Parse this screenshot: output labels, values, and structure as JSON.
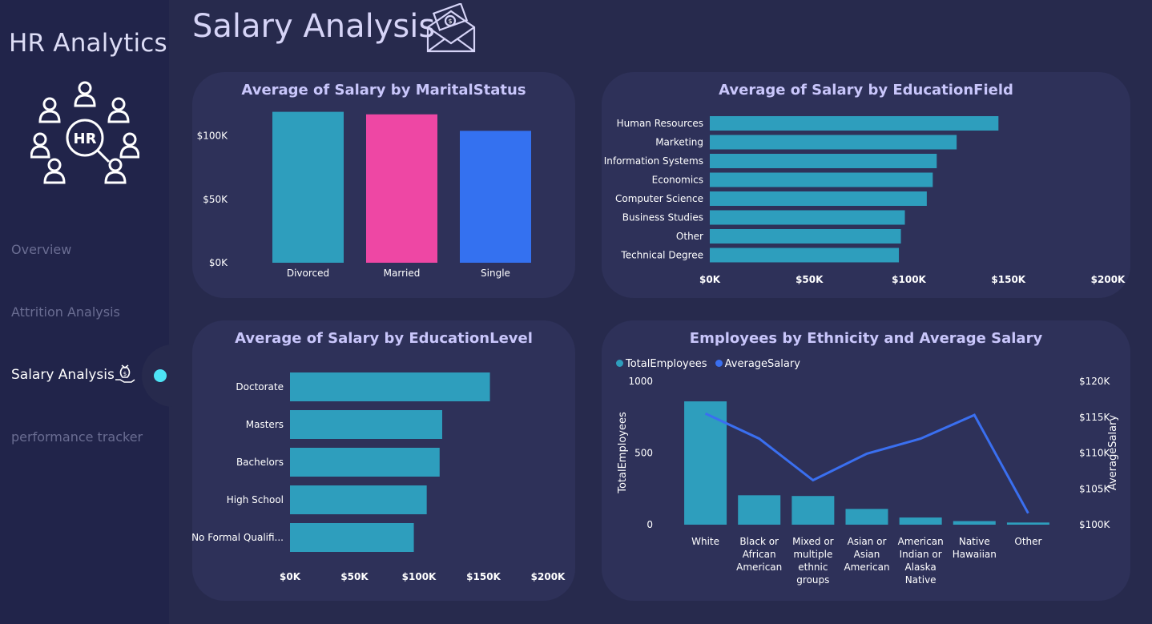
{
  "sidebar": {
    "app_title": "HR Analytics",
    "nav": [
      {
        "label": "Overview"
      },
      {
        "label": "Attrition Analysis"
      },
      {
        "label": "Salary Analysis"
      },
      {
        "label": "performance tracker"
      }
    ],
    "active_index": 2,
    "hr_logo_text": "HR"
  },
  "page_title": "Salary Analysis",
  "colors": {
    "teal": "#2e9ebd",
    "pink": "#ee47a4",
    "blue": "#3471f0",
    "line": "#3a6ff0",
    "title": "#c9c6fb",
    "active_dot": "#4de3f5"
  },
  "charts": {
    "marital": {
      "title": "Average of Salary by MaritalStatus",
      "chart_data": {
        "type": "bar",
        "categories": [
          "Divorced",
          "Married",
          "Single"
        ],
        "values": [
          119000,
          117000,
          104000
        ],
        "bar_colors": [
          "#2e9ebd",
          "#ee47a4",
          "#3471f0"
        ],
        "ylim": [
          0,
          120000
        ],
        "yticks": [
          "$0K",
          "$50K",
          "$100K"
        ],
        "ytick_values": [
          0,
          50000,
          100000
        ]
      }
    },
    "education_field": {
      "title": "Average of Salary by EducationField",
      "chart_data": {
        "type": "bar",
        "orientation": "horizontal",
        "categories": [
          "Human Resources",
          "Marketing",
          "Information Systems",
          "Economics",
          "Computer Science",
          "Business Studies",
          "Other",
          "Technical Degree"
        ],
        "values": [
          145000,
          124000,
          114000,
          112000,
          109000,
          98000,
          96000,
          95000
        ],
        "xlim": [
          0,
          200000
        ],
        "xticks": [
          "$0K",
          "$50K",
          "$100K",
          "$150K",
          "$200K"
        ],
        "xtick_values": [
          0,
          50000,
          100000,
          150000,
          200000
        ]
      }
    },
    "education_level": {
      "title": "Average of Salary by EducationLevel",
      "chart_data": {
        "type": "bar",
        "orientation": "horizontal",
        "categories": [
          "Doctorate",
          "Masters",
          "Bachelors",
          "High School",
          "No Formal Qualifi..."
        ],
        "values": [
          155000,
          118000,
          116000,
          106000,
          96000
        ],
        "xlim": [
          0,
          200000
        ],
        "xticks": [
          "$0K",
          "$50K",
          "$100K",
          "$150K",
          "$200K"
        ],
        "xtick_values": [
          0,
          50000,
          100000,
          150000,
          200000
        ]
      }
    },
    "ethnicity": {
      "title": "Employees by Ethnicity and Average Salary",
      "legend": [
        "TotalEmployees",
        "AverageSalary"
      ],
      "chart_data": {
        "type": "bar",
        "combo": "bar+line",
        "categories": [
          [
            "White"
          ],
          [
            "Black or",
            "African",
            "American"
          ],
          [
            "Mixed or",
            "multiple",
            "ethnic",
            "groups"
          ],
          [
            "Asian or",
            "Asian",
            "American"
          ],
          [
            "American",
            "Indian or",
            "Alaska",
            "Native"
          ],
          [
            "Native",
            "Hawaiian"
          ],
          [
            "Other"
          ]
        ],
        "series": [
          {
            "name": "TotalEmployees",
            "type": "bar",
            "values": [
              860,
              205,
              200,
              110,
              50,
              25,
              15
            ]
          },
          {
            "name": "AverageSalary",
            "type": "line",
            "values": [
              115500,
              112000,
              106200,
              109900,
              112000,
              115300,
              101600
            ]
          }
        ],
        "y_left": {
          "label": "TotalEmployees",
          "lim": [
            0,
            1000
          ],
          "ticks": [
            "0",
            "500",
            "1000"
          ],
          "tick_values": [
            0,
            500,
            1000
          ]
        },
        "y_right": {
          "label": "AverageSalary",
          "lim": [
            100000,
            120000
          ],
          "ticks": [
            "$100K",
            "$105K",
            "$110K",
            "$115K",
            "$120K"
          ],
          "tick_values": [
            100000,
            105000,
            110000,
            115000,
            120000
          ]
        }
      }
    }
  }
}
